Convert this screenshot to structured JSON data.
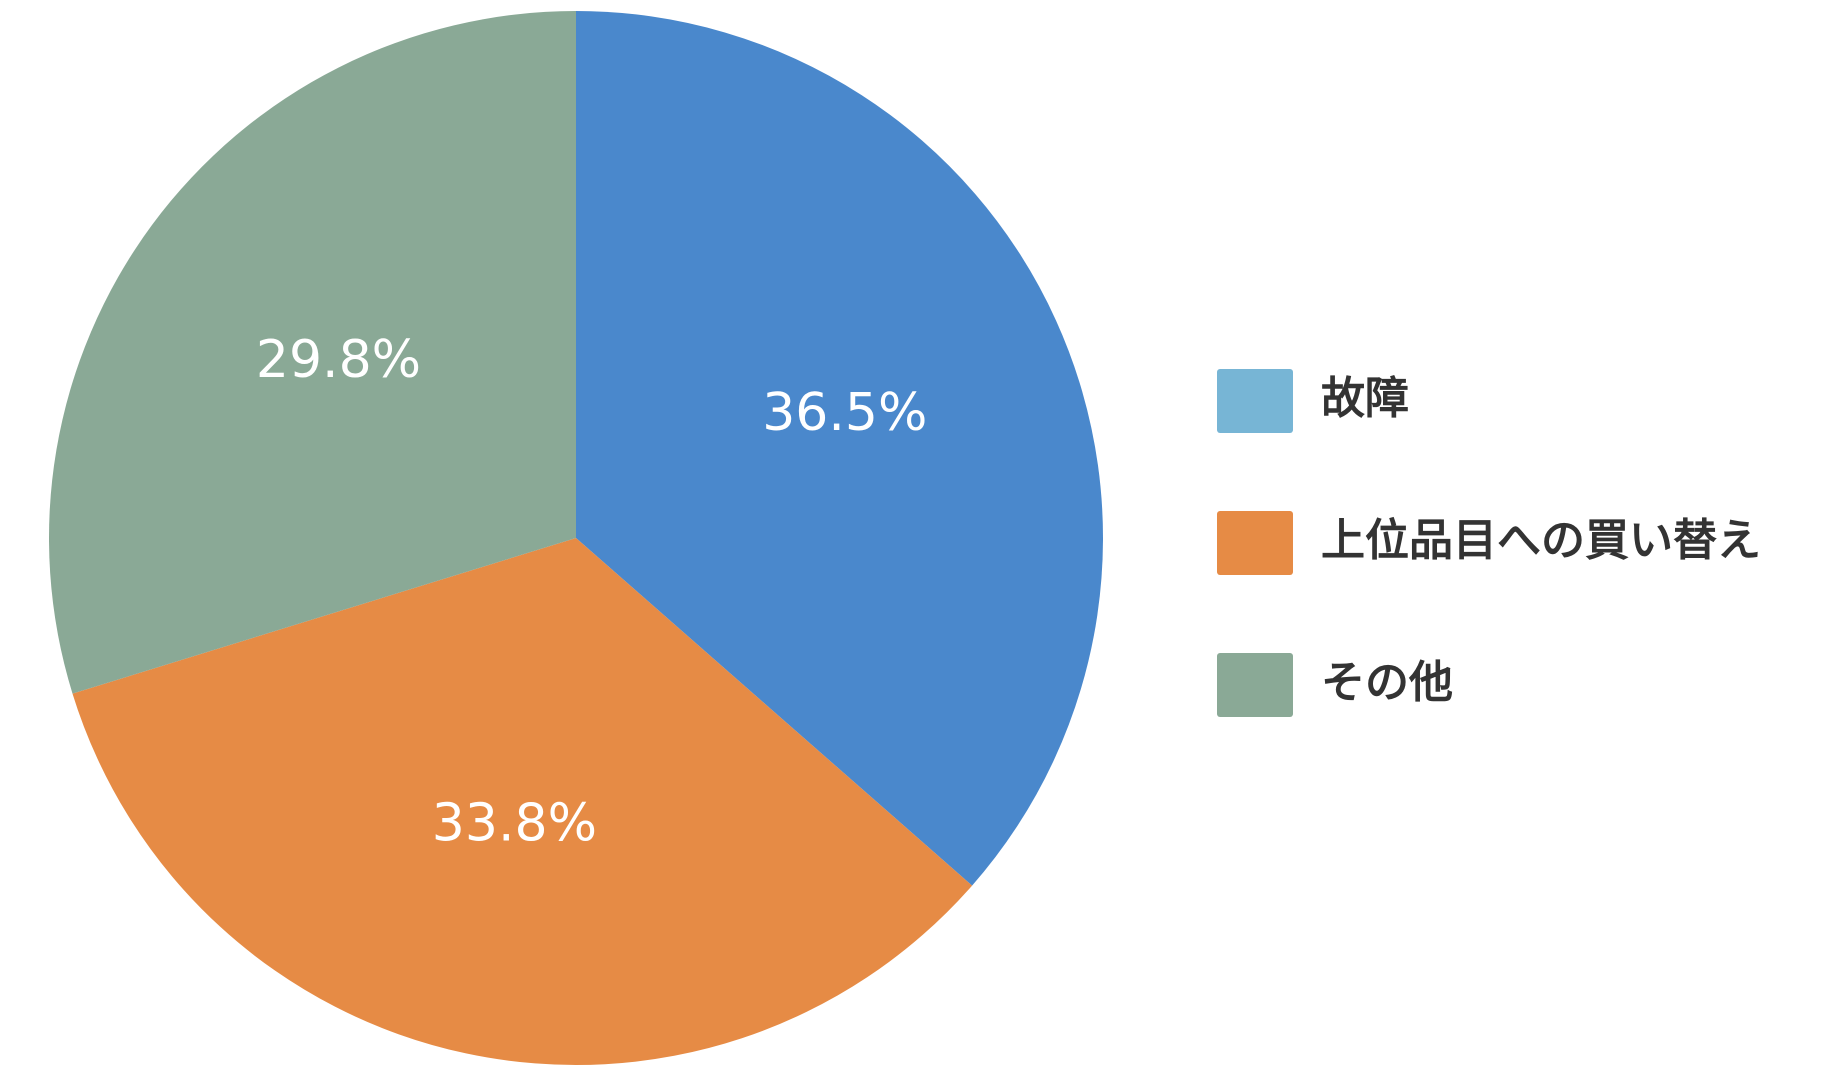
{
  "chart_data": {
    "type": "pie",
    "categories": [
      "故障",
      "上位品目への買い替え",
      "その他"
    ],
    "values": [
      36.5,
      33.8,
      29.8
    ],
    "value_labels": [
      "36.5%",
      "33.8%",
      "29.8%"
    ],
    "colors": [
      "#4a88cc",
      "#e68b45",
      "#8aa996"
    ],
    "legend_colors": [
      "#77b5d5",
      "#e68b45",
      "#8aa996"
    ],
    "legend": "right"
  }
}
